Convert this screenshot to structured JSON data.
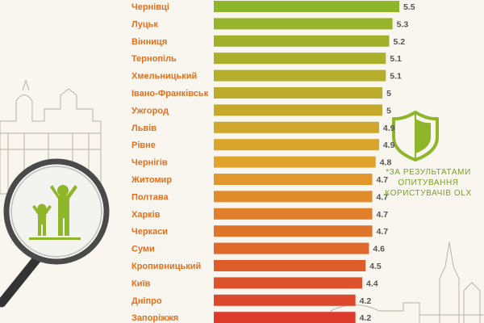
{
  "chart_data": {
    "type": "bar",
    "orientation": "horizontal",
    "categories": [
      "Чернівці",
      "Луцьк",
      "Вінниця",
      "Тернопіль",
      "Хмельницький",
      "Івано-Франківськ",
      "Ужгород",
      "Львів",
      "Рівне",
      "Чернігів",
      "Житомир",
      "Полтава",
      "Харків",
      "Черкаси",
      "Суми",
      "Кропивницький",
      "Київ",
      "Дніпро",
      "Запоріжжя"
    ],
    "values": [
      5.5,
      5.3,
      5.2,
      5.1,
      5.1,
      5,
      5,
      4.9,
      4.9,
      4.8,
      4.7,
      4.7,
      4.7,
      4.7,
      4.6,
      4.5,
      4.4,
      4.2,
      4.2
    ],
    "value_labels": [
      "5.5",
      "5.3",
      "5.2",
      "5.1",
      "5.1",
      "5",
      "5",
      "4.9",
      "4.9",
      "4.8",
      "4.7",
      "4.7",
      "4.7",
      "4.7",
      "4.6",
      "4.5",
      "4.4",
      "4.2",
      "4.2"
    ],
    "title": "",
    "xlabel": "",
    "ylabel": "",
    "xlim": [
      0,
      5.5
    ],
    "grid": false,
    "colors": {
      "high": "#8fb62a",
      "mid": "#e2a32b",
      "low": "#dc3b2b",
      "label": "#e2701f",
      "value": "#555555"
    }
  },
  "note": {
    "lines": [
      "*ЗА РЕЗУЛЬТАТАМИ",
      "ОПИТУВАННЯ",
      "КОРИСТУВАЧІВ OLX"
    ]
  },
  "icons": {
    "shield": "shield-icon",
    "family": "family-icon",
    "magnifier": "magnifying-glass-icon",
    "buildings": "building-sketch-icon"
  }
}
